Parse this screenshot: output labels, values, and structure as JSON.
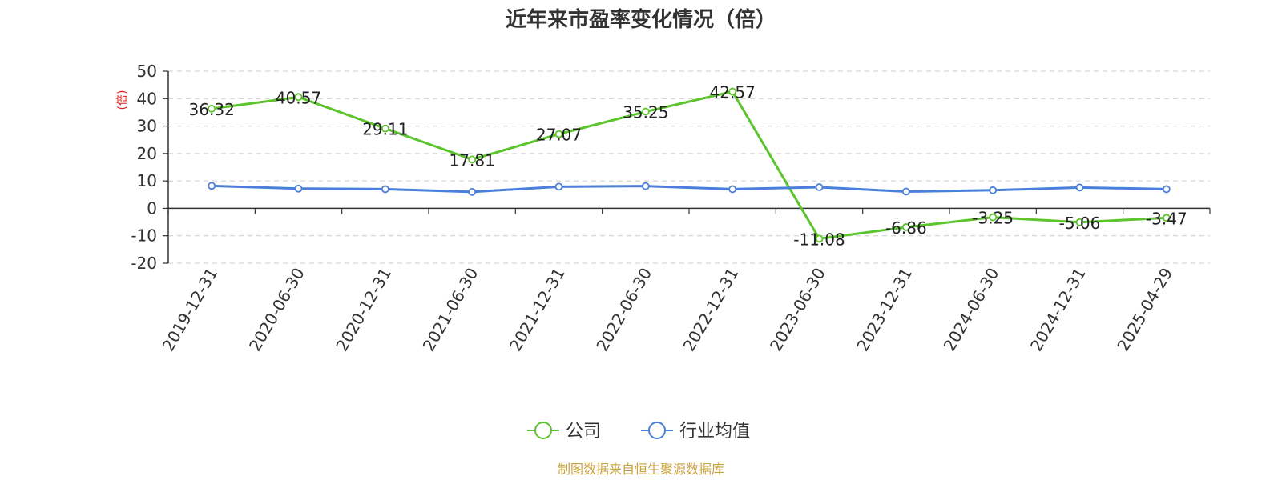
{
  "chart_data": {
    "type": "line",
    "title": "近年来市盈率变化情况（倍）",
    "ylabel": "(倍)",
    "xlabel": "",
    "x": [
      "2019-12-31",
      "2020-06-30",
      "2020-12-31",
      "2021-06-30",
      "2021-12-31",
      "2022-06-30",
      "2022-12-31",
      "2023-06-30",
      "2023-12-31",
      "2024-06-30",
      "2024-12-31",
      "2025-04-29"
    ],
    "ylim": [
      -20,
      50
    ],
    "yticks": [
      -20,
      -10,
      0,
      10,
      20,
      30,
      40,
      50
    ],
    "grid": true,
    "legend_position": "bottom",
    "series": [
      {
        "name": "公司",
        "color": "#5cc42c",
        "values": [
          36.32,
          40.57,
          29.11,
          17.81,
          27.07,
          35.25,
          42.57,
          -11.08,
          -6.86,
          -3.25,
          -5.06,
          -3.47
        ],
        "labels": [
          "36.32",
          "40.57",
          "29.11",
          "17.81",
          "27.07",
          "35.25",
          "42.57",
          "-11.08",
          "-6.86",
          "-3.25",
          "-5.06",
          "-3.47"
        ]
      },
      {
        "name": "行业均值",
        "color": "#4a7fdb",
        "values": [
          8.2,
          7.2,
          7.0,
          6.0,
          7.9,
          8.1,
          7.0,
          7.7,
          6.1,
          6.6,
          7.6,
          7.0
        ]
      }
    ],
    "source": "制图数据来自恒生聚源数据库",
    "source_color": "#c8a23c"
  }
}
